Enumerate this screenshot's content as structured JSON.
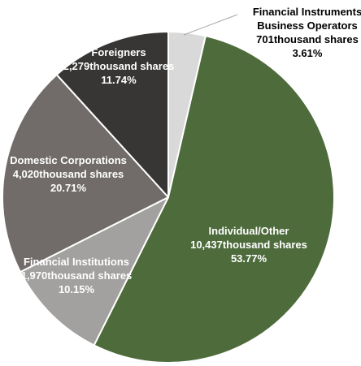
{
  "chart_data": {
    "type": "pie",
    "title": "",
    "slices": [
      {
        "lines": [
          "Financial Instruments",
          "Business Operators",
          "701thousand shares",
          "3.61%"
        ],
        "value": 701,
        "percent": 3.61,
        "color": "#d9d9d9",
        "text_color": "#000000"
      },
      {
        "lines": [
          "Individual/Other",
          "10,437thousand shares",
          "53.77%"
        ],
        "value": 10437,
        "percent": 53.77,
        "color": "#4e6b3c",
        "text_color": "#ffffff"
      },
      {
        "lines": [
          "Financial Institutions",
          "1,970thousand shares",
          "10.15%"
        ],
        "value": 1970,
        "percent": 10.15,
        "color": "#a3a19f",
        "text_color": "#ffffff"
      },
      {
        "lines": [
          "Domestic Corporations",
          "4,020thousand shares",
          "20.71%"
        ],
        "value": 4020,
        "percent": 20.71,
        "color": "#716c69",
        "text_color": "#ffffff"
      },
      {
        "lines": [
          "Foreigners",
          "2,279thousand shares",
          "11.74%"
        ],
        "value": 2279,
        "percent": 11.74,
        "color": "#383634",
        "text_color": "#ffffff"
      }
    ]
  }
}
